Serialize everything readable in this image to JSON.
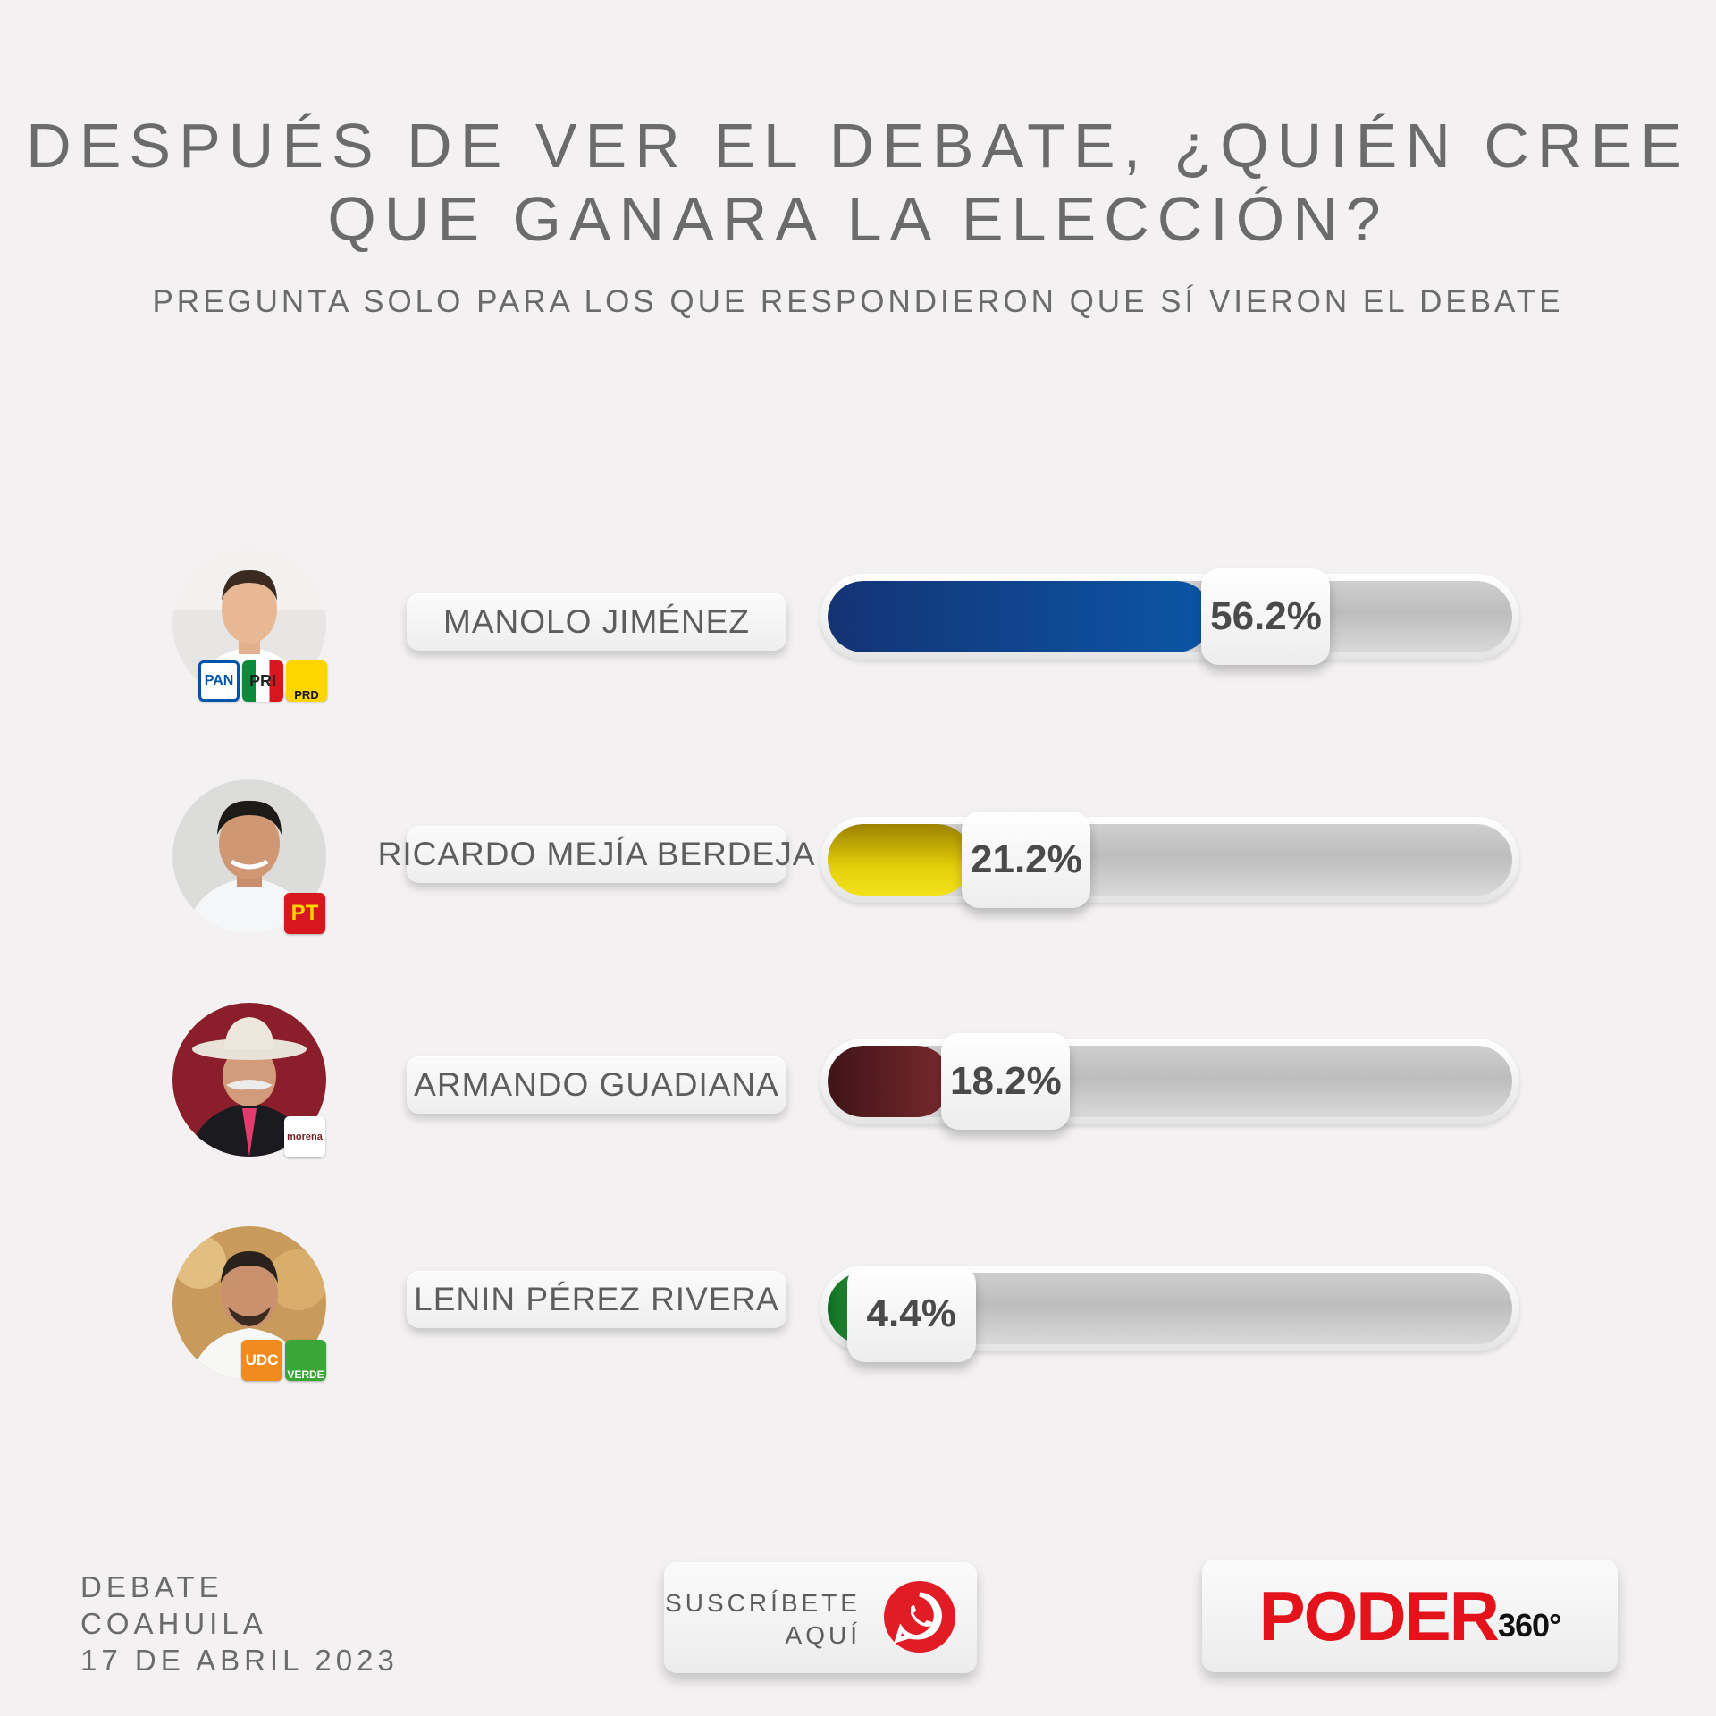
{
  "title_line1": "DESPUÉS DE VER EL DEBATE, ¿QUIÉN CREE",
  "title_line2": "QUE GANARA LA ELECCIÓN?",
  "subtitle": "PREGUNTA SOLO PARA LOS QUE RESPONDIERON QUE SÍ VIERON EL DEBATE",
  "chart_data": {
    "type": "bar",
    "orientation": "horizontal",
    "categories": [
      "MANOLO JIMÉNEZ",
      "RICARDO MEJÍA BERDEJA",
      "ARMANDO GUADIANA",
      "LENIN PÉREZ RIVERA"
    ],
    "values": [
      56.2,
      21.2,
      18.2,
      4.4
    ],
    "value_labels": [
      "56.2%",
      "21.2%",
      "18.2%",
      "4.4%"
    ],
    "colors": [
      "#0a3f8e",
      "#e4cf0a",
      "#6b1f22",
      "#1f8a2a"
    ],
    "xlim": [
      0,
      100
    ]
  },
  "parties": [
    [
      "PAN",
      "PRI",
      "PRD"
    ],
    [
      "PT"
    ],
    [
      "morena"
    ],
    [
      "UDC",
      "VERDE"
    ]
  ],
  "footer": {
    "line1": "DEBATE",
    "line2": "COAHUILA",
    "line3": "17 DE ABRIL 2023"
  },
  "subscribe": {
    "line1": "SUSCRÍBETE",
    "line2": "AQUÍ",
    "icon": "whatsapp-icon"
  },
  "brand": {
    "main": "PODER",
    "sub": "360°"
  }
}
